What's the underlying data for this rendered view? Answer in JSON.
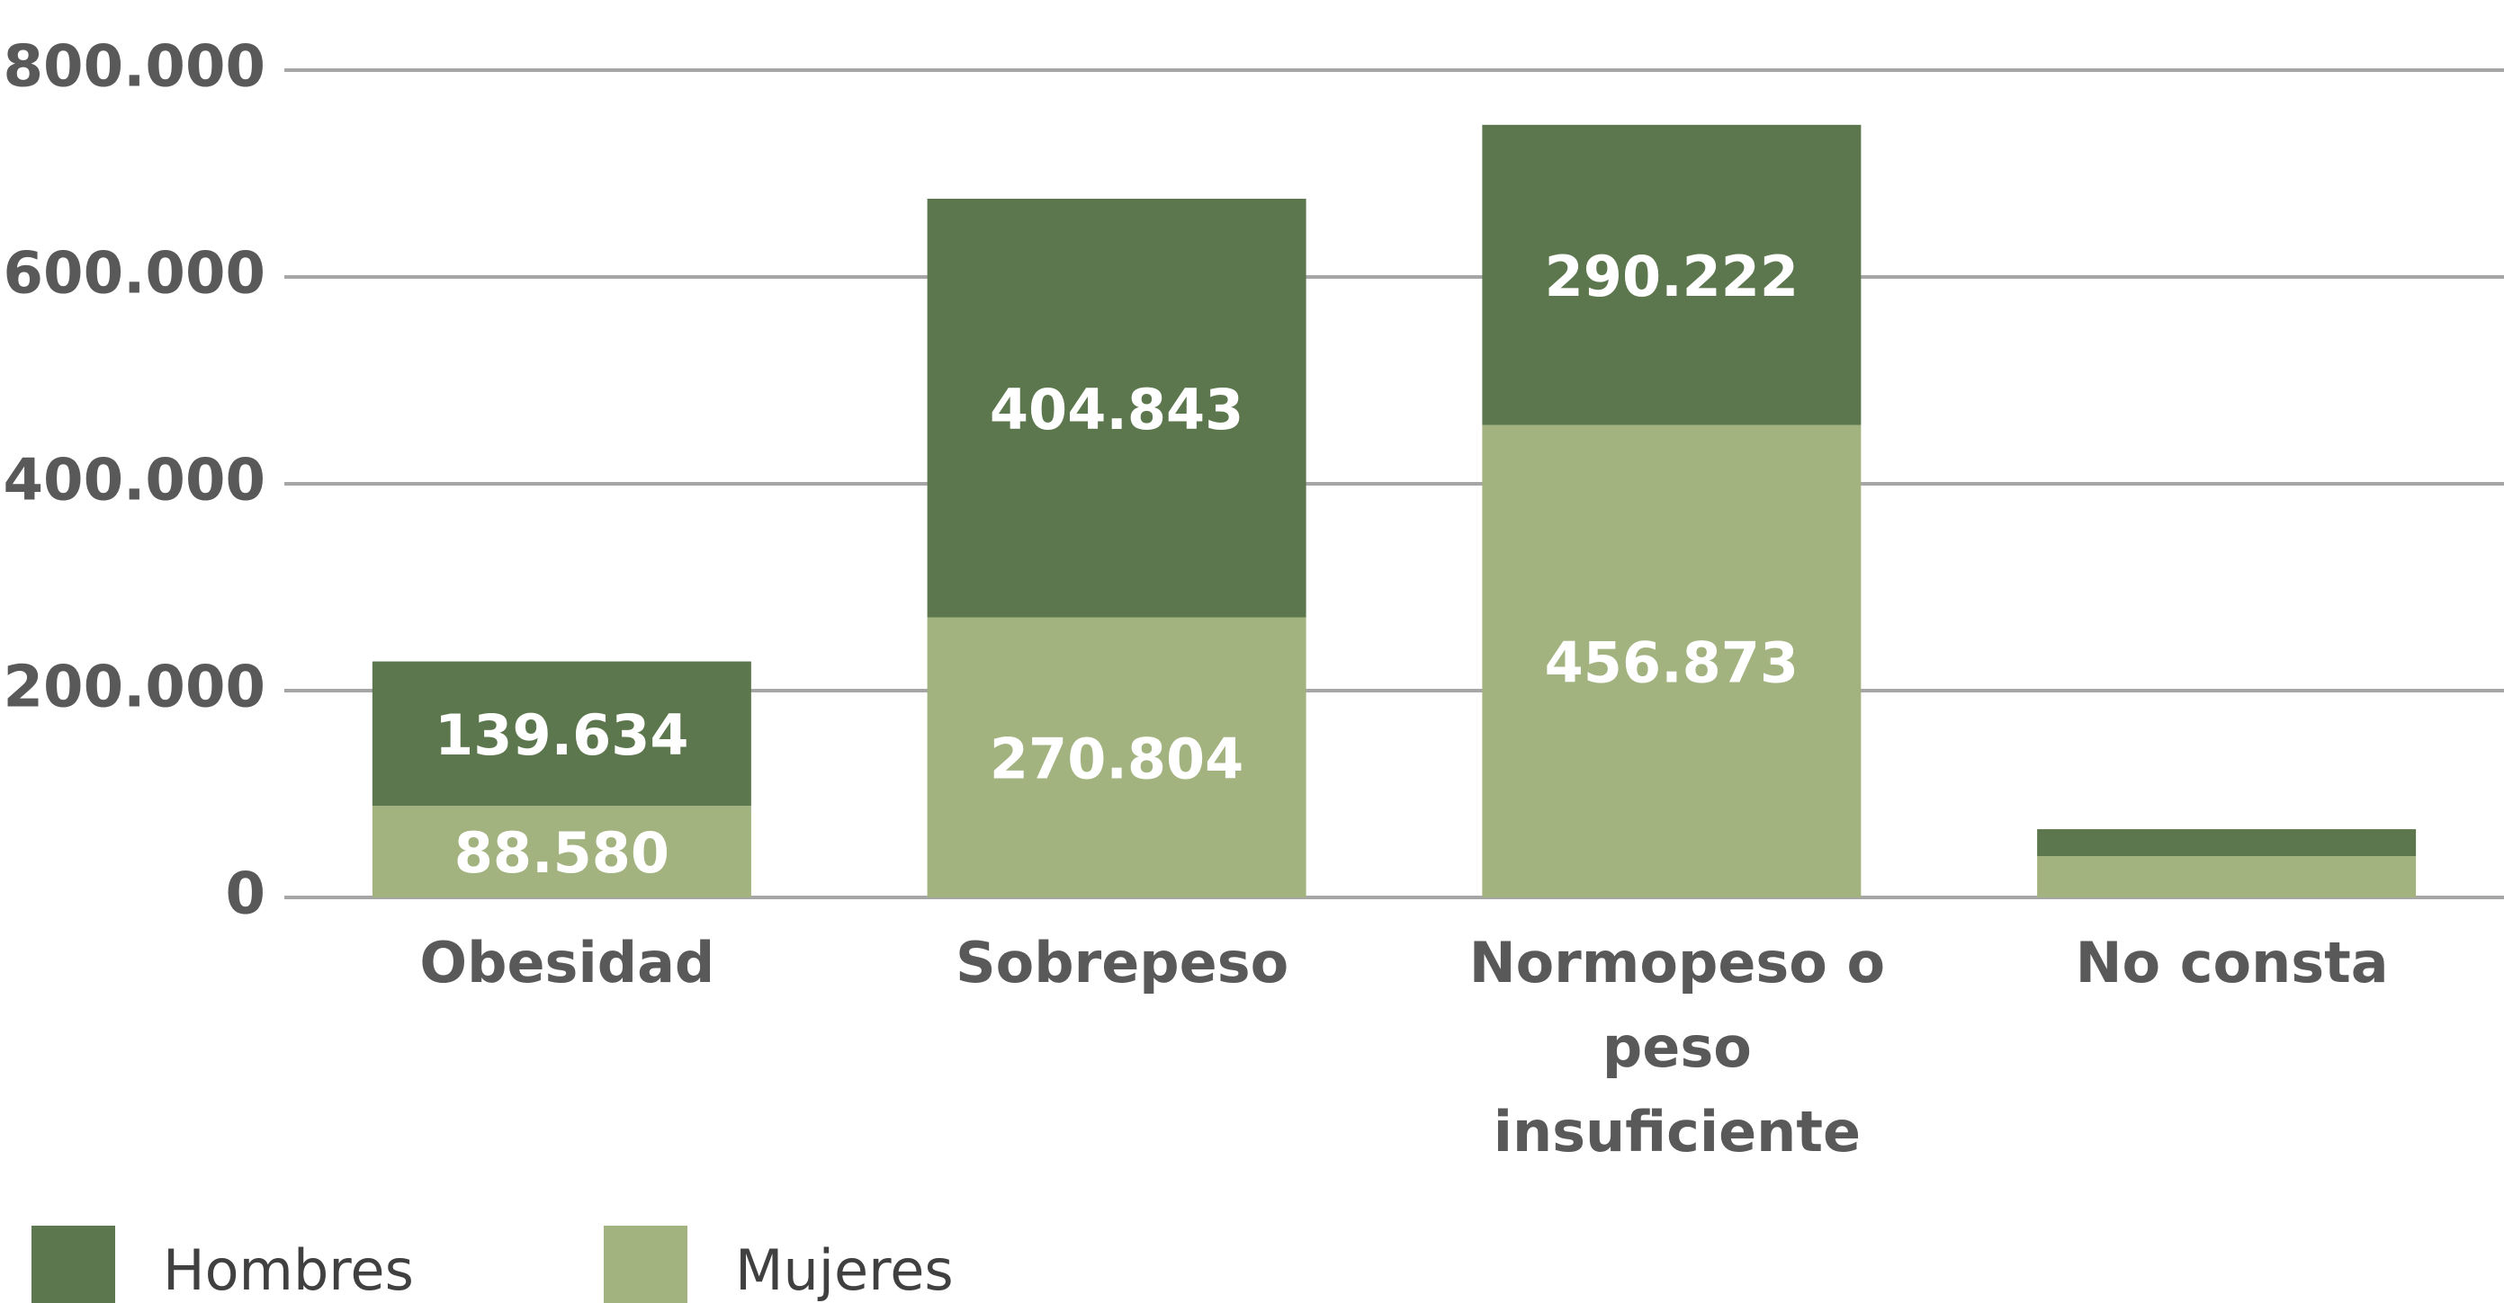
{
  "chart_data": {
    "type": "stacked_bar",
    "categories": [
      "Obesidad",
      "Sobrepeso",
      "Normopeso o peso insuficiente",
      "No consta"
    ],
    "series": [
      {
        "name": "Mujeres",
        "color": "#a2b37f",
        "values": [
          88580,
          270804,
          456873,
          40000
        ],
        "value_labels": [
          "88.580",
          "270.804",
          "456.873",
          null
        ]
      },
      {
        "name": "Hombres",
        "color": "#5c774d",
        "values": [
          139634,
          404843,
          290222,
          26000
        ],
        "value_labels": [
          "139.634",
          "404.843",
          "290.222",
          null
        ]
      }
    ],
    "legend_order": [
      1,
      0
    ],
    "ylim": [
      0,
      800000
    ],
    "yticks": [
      0,
      {
        "value": 200000,
        "label": "200.000"
      },
      {
        "value": 400000,
        "label": "400.000"
      },
      {
        "value": 600000,
        "label": "600.000"
      },
      {
        "value": 800000,
        "label": "800.000"
      }
    ],
    "grid": true
  }
}
